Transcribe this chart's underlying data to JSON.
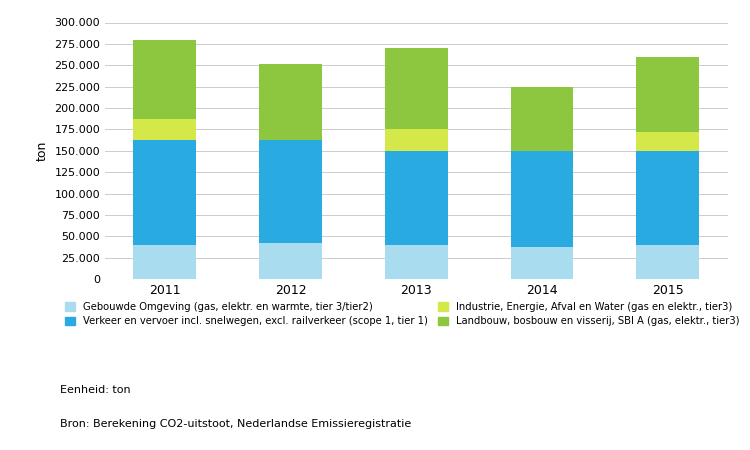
{
  "years": [
    "2011",
    "2012",
    "2013",
    "2014",
    "2015"
  ],
  "series": {
    "gebouwde": [
      40000,
      42000,
      40000,
      38000,
      40000
    ],
    "verkeer": [
      122000,
      120000,
      110000,
      112000,
      110000
    ],
    "industrie": [
      25000,
      0,
      25000,
      0,
      22000
    ],
    "landbouw": [
      93000,
      90000,
      95000,
      75000,
      88000
    ]
  },
  "colors": {
    "gebouwde": "#aadcf0",
    "verkeer": "#29abe2",
    "industrie": "#d4e84a",
    "landbouw": "#8dc63f"
  },
  "legend_labels": {
    "gebouwde": "Gebouwde Omgeving (gas, elektr. en warmte, tier 3/tier2)",
    "verkeer": "Verkeer en vervoer incl. snelwegen, excl. railverkeer (scope 1, tier 1)",
    "industrie": "Industrie, Energie, Afval en Water (gas en elektr., tier3)",
    "landbouw": "Landbouw, bosbouw en visserij, SBI A (gas, elektr., tier3)"
  },
  "ylabel": "ton",
  "ylim": [
    0,
    300000
  ],
  "yticks": [
    0,
    25000,
    50000,
    75000,
    100000,
    125000,
    150000,
    175000,
    200000,
    225000,
    250000,
    275000,
    300000
  ],
  "source_text": "Bron: Berekening CO2-uitstoot, Nederlandse Emissieregistratie",
  "unit_text": "Eenheid: ton",
  "background_color": "#ffffff",
  "grid_color": "#cccccc"
}
